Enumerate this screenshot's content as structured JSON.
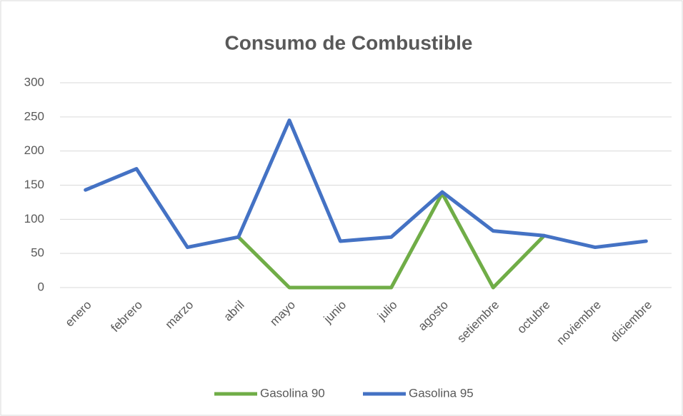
{
  "chart_data": {
    "type": "line",
    "title": "Consumo de Combustible",
    "categories": [
      "enero",
      "febrero",
      "marzo",
      "abril",
      "mayo",
      "junio",
      "julio",
      "agosto",
      "setiembre",
      "octubre",
      "noviembre",
      "diciembre"
    ],
    "series": [
      {
        "name": "Gasolina 90",
        "color": "#70ad47",
        "values": [
          null,
          null,
          null,
          74,
          0,
          0,
          0,
          138,
          0,
          76,
          null,
          null
        ]
      },
      {
        "name": "Gasolina 95",
        "color": "#4472c4",
        "values": [
          143,
          174,
          59,
          74,
          245,
          68,
          74,
          140,
          83,
          76,
          59,
          68
        ]
      }
    ],
    "ylim": [
      0,
      300
    ],
    "yticks": [
      0,
      50,
      100,
      150,
      200,
      250,
      300
    ],
    "grid": true,
    "legend": "bottom"
  }
}
